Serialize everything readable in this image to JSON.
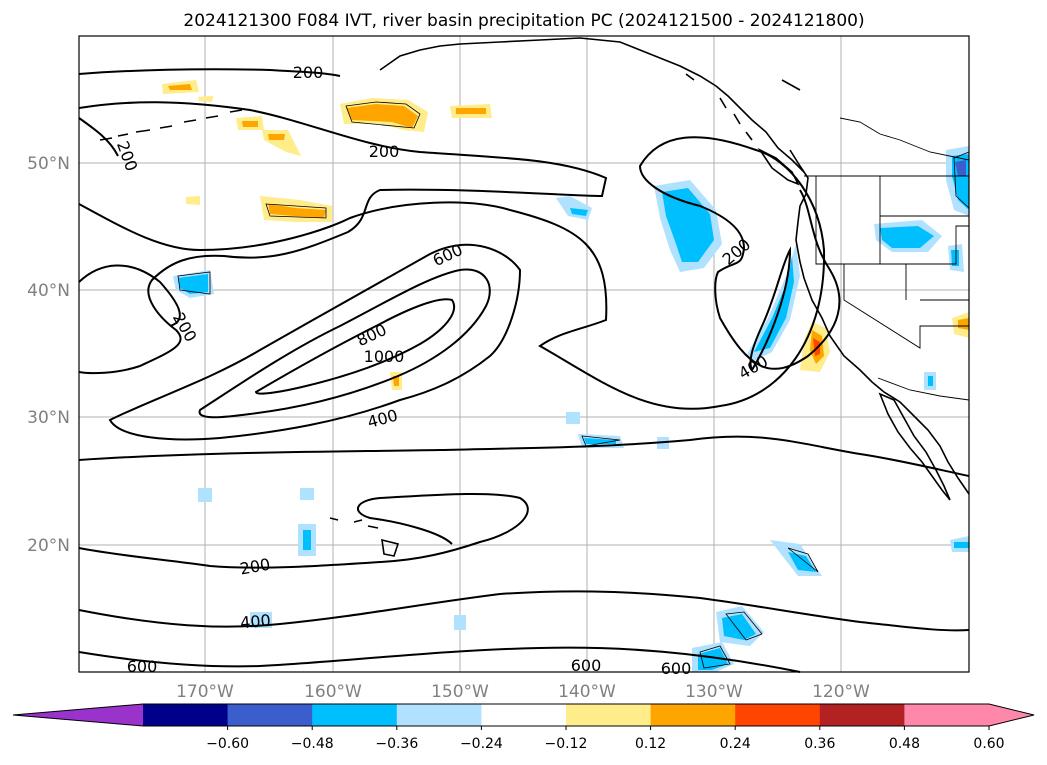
{
  "map": {
    "title": "2024121300 F084 IVT, river basin precipitation PC (2024121500 - 2024121800)",
    "lat_labels": [
      "50°N",
      "40°N",
      "30°N",
      "20°N"
    ],
    "lon_labels": [
      "170°W",
      "160°W",
      "150°W",
      "140°W",
      "130°W",
      "120°W"
    ],
    "contour_labels": [
      "200",
      "200",
      "200",
      "200",
      "200",
      "200",
      "400",
      "400",
      "400",
      "600",
      "600",
      "600",
      "600",
      "800",
      "1000"
    ],
    "colorbar": {
      "labels": [
        "−0.60",
        "−0.48",
        "−0.36",
        "−0.24",
        "−0.12",
        "0.12",
        "0.24",
        "0.36",
        "0.48",
        "0.60"
      ],
      "colors": [
        "#9933cc",
        "#00008b",
        "#3a5fcd",
        "#00bfff",
        "#b0e2ff",
        "#ffffff",
        "#ffec8b",
        "#ffa500",
        "#ff4500",
        "#b22222",
        "#ff88aa",
        "#ff88aa"
      ]
    }
  }
}
